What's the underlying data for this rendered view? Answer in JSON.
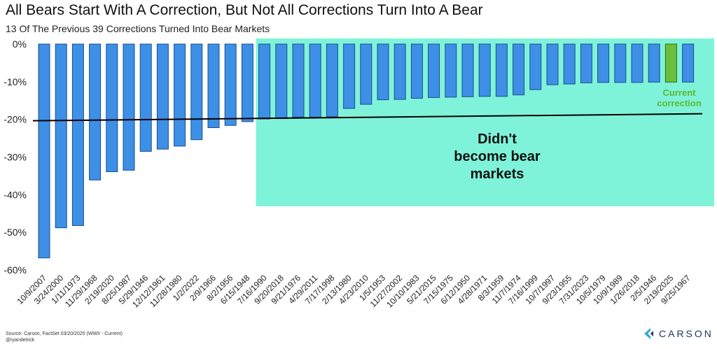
{
  "chart_data": {
    "type": "bar",
    "title": "All Bears Start With A Correction, But Not All Corrections Turn Into A Bear",
    "subtitle": "13 Of The Previous 39 Corrections Turned Into Bear Markets",
    "categories": [
      "10/9/2007",
      "3/24/2000",
      "1/11/1973",
      "11/29/1968",
      "2/19/2020",
      "8/25/1987",
      "5/29/1946",
      "12/12/1961",
      "11/28/1980",
      "1/2/2022",
      "2/9/1966",
      "8/2/1956",
      "6/15/1948",
      "7/16/1990",
      "9/20/2018",
      "9/21/1976",
      "4/29/2011",
      "7/17/1998",
      "2/13/1980",
      "4/23/2010",
      "1/5/1953",
      "11/27/2002",
      "10/10/1983",
      "5/21/2015",
      "7/15/1975",
      "6/12/1950",
      "4/28/1971",
      "8/3/1959",
      "11/7/1974",
      "7/16/1999",
      "10/7/1997",
      "9/23/1955",
      "7/31/2023",
      "10/5/1979",
      "10/9/1989",
      "1/26/2018",
      "2/5/1946",
      "2/19/2025",
      "9/25/1967"
    ],
    "values": [
      -56.8,
      -48.8,
      -48.2,
      -36.1,
      -33.9,
      -33.5,
      -28.5,
      -27.9,
      -27.1,
      -25.4,
      -22.2,
      -21.6,
      -20.6,
      -19.9,
      -19.8,
      -19.4,
      -19.4,
      -19.3,
      -17.1,
      -16.0,
      -14.8,
      -14.7,
      -14.4,
      -14.2,
      -14.1,
      -14.0,
      -13.9,
      -13.9,
      -13.5,
      -12.1,
      -10.8,
      -10.6,
      -10.3,
      -10.2,
      -10.2,
      -10.2,
      -10.1,
      -10.1,
      -10.1
    ],
    "highlight_index": 37,
    "ylim": [
      -60,
      0
    ],
    "yticks": [
      "0%",
      "-10%",
      "-20%",
      "-30%",
      "-40%",
      "-50%",
      "-60%"
    ],
    "threshold": -20,
    "annotations": {
      "box_label": "Didn't become bear markets",
      "current_label_line1": "Current",
      "current_label_line2": "correction"
    },
    "colors": {
      "bar": "#3e8fe6",
      "bar_edge": "#1a4f8a",
      "highlight": "#6cbf3a",
      "highlight_edge": "#2e6a14",
      "box": "#7ff3d9",
      "current_text": "#5cb82e"
    }
  },
  "footer": {
    "source_line1": "Source: Carson, FactSet 03/20/2025 (WWII - Current)",
    "source_line2": "@ryandetrick",
    "brand": "CARSON"
  }
}
